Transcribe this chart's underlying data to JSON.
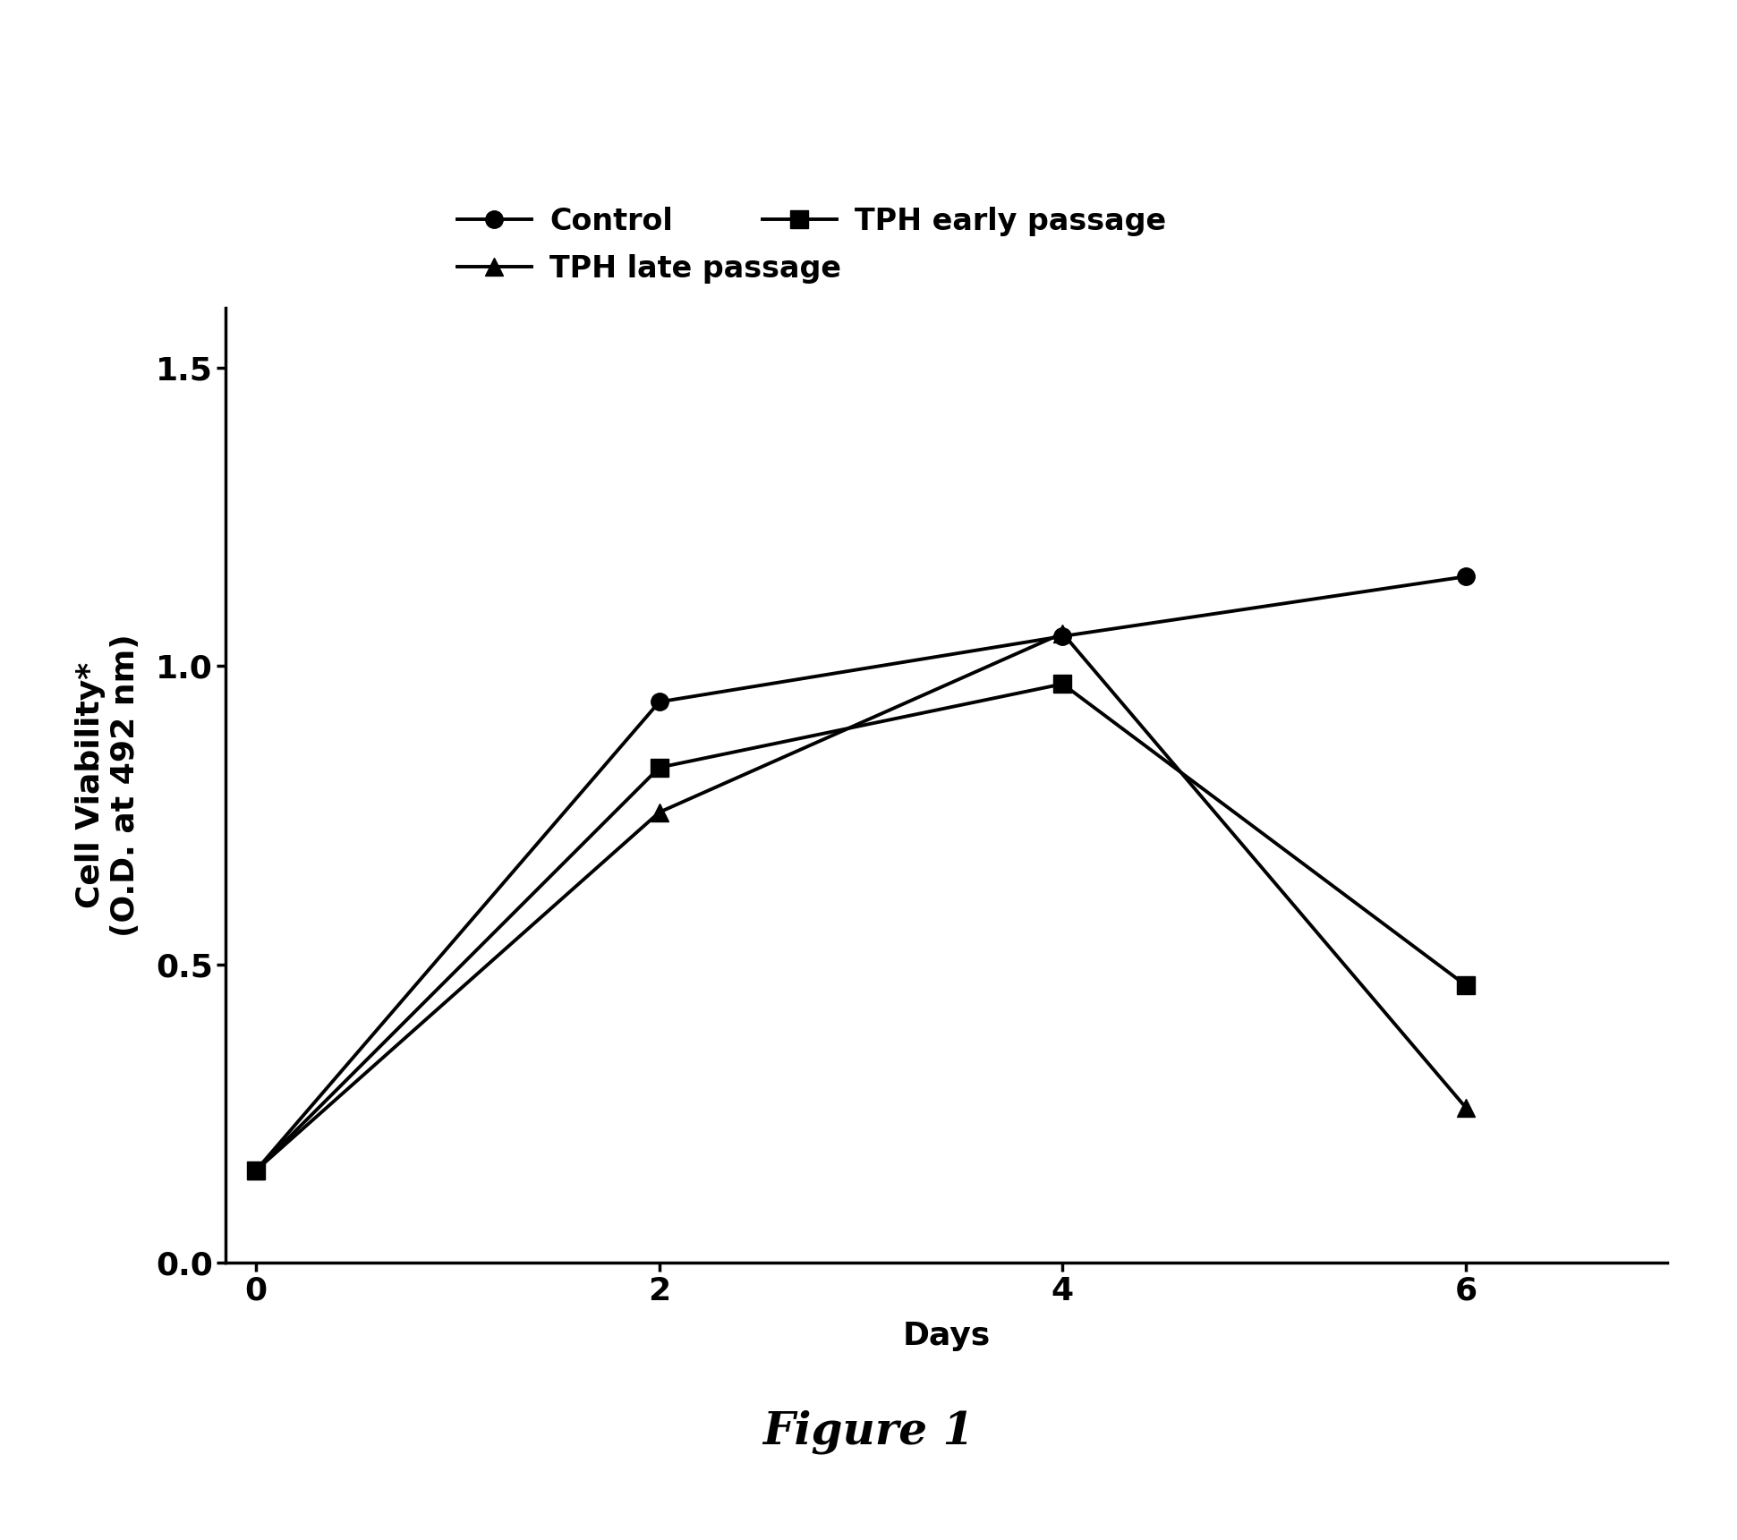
{
  "series": [
    {
      "label": "Control",
      "x": [
        0,
        2,
        4,
        6
      ],
      "y": [
        0.155,
        0.94,
        1.05,
        1.15
      ],
      "marker": "o",
      "color": "#000000",
      "markersize": 14,
      "linewidth": 2.8
    },
    {
      "label": "TPH early passage",
      "x": [
        0,
        2,
        4,
        6
      ],
      "y": [
        0.155,
        0.83,
        0.97,
        0.465
      ],
      "marker": "s",
      "color": "#000000",
      "markersize": 14,
      "linewidth": 2.8
    },
    {
      "label": "TPH late passage",
      "x": [
        0,
        2,
        4,
        6
      ],
      "y": [
        0.155,
        0.755,
        1.055,
        0.26
      ],
      "marker": "^",
      "color": "#000000",
      "markersize": 14,
      "linewidth": 2.8
    }
  ],
  "xlabel": "Days",
  "ylabel": "Cell Viability*\n(O.D. at 492 nm)",
  "ylim": [
    0,
    1.6
  ],
  "xlim": [
    -0.15,
    7
  ],
  "yticks": [
    0,
    0.5,
    1,
    1.5
  ],
  "xticks": [
    0,
    2,
    4,
    6
  ],
  "figure_caption": "Figure 1",
  "axis_linewidth": 2.5,
  "background_color": "#ffffff",
  "label_fontsize": 26,
  "tick_fontsize": 26,
  "legend_fontsize": 24,
  "caption_fontsize": 36
}
